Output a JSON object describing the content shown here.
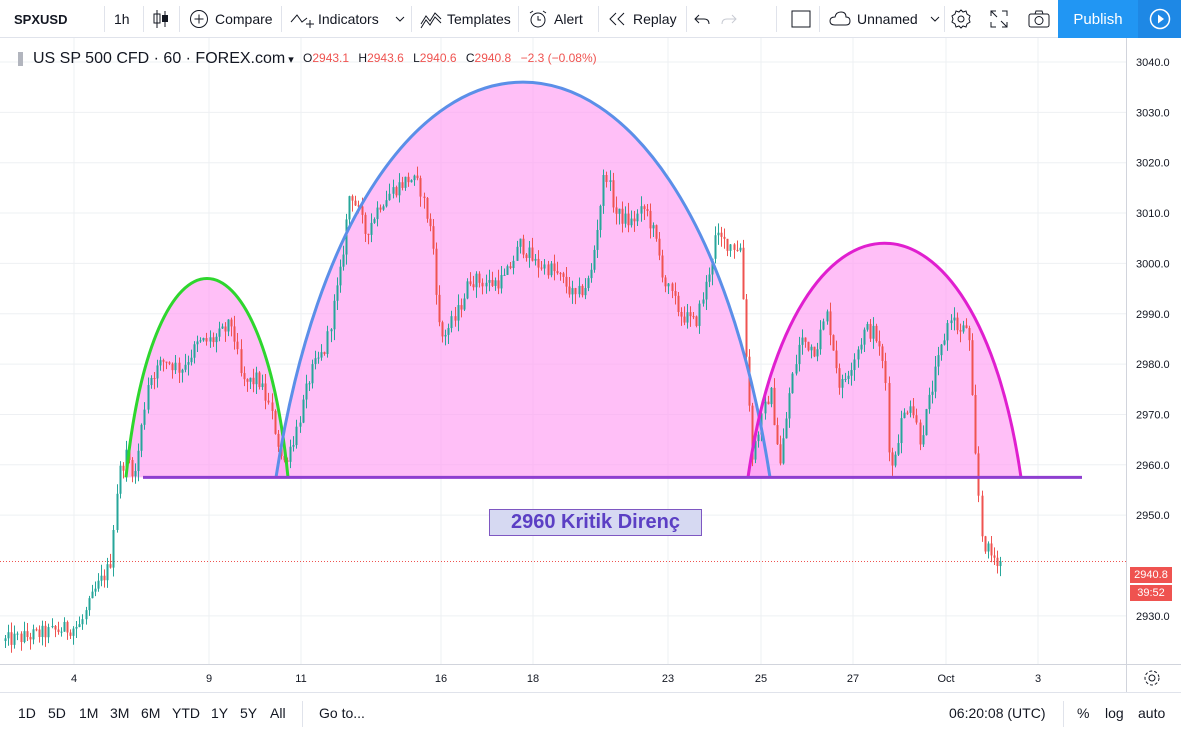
{
  "toolbar": {
    "symbol": "SPXUSD",
    "interval": "1h",
    "compare": "Compare",
    "indicators": "Indicators",
    "templates": "Templates",
    "alert": "Alert",
    "replay": "Replay",
    "layout_name": "Unnamed",
    "publish": "Publish"
  },
  "legend": {
    "title": "US SP 500 CFD · 60 · FOREX.com",
    "open_label": "O",
    "open": "2943.1",
    "high_label": "H",
    "high": "2943.6",
    "low_label": "L",
    "low": "2940.6",
    "close_label": "C",
    "close": "2940.8",
    "change": "−2.3 (−0.08%)"
  },
  "chart_data": {
    "type": "candlestick",
    "y_axis_ticks": [
      "3040.0",
      "3030.0",
      "3020.0",
      "3010.0",
      "3000.0",
      "2990.0",
      "2980.0",
      "2970.0",
      "2960.0",
      "2950.0",
      "2930.0"
    ],
    "y_axis_tick_values": [
      3040,
      3030,
      3020,
      3010,
      3000,
      2990,
      2980,
      2970,
      2960,
      2950,
      2930
    ],
    "ylim": [
      2921,
      3044
    ],
    "x_axis_ticks": [
      "4",
      "9",
      "11",
      "16",
      "18",
      "23",
      "25",
      "27",
      "Oct",
      "3"
    ],
    "last_price": "2940.8",
    "countdown": "39:52",
    "resistance_level": 2957.5,
    "annotation": "2960 Kritik Direnç",
    "colors": {
      "up": "#26a69a",
      "down": "#ef5350",
      "fill": "#ff9cf3",
      "arc_left": "#2ed62e",
      "arc_mid": "#5b8fe8",
      "arc_right": "#e01fcf",
      "line": "#8e3fd0"
    }
  },
  "bottom": {
    "ranges": [
      "1D",
      "5D",
      "1M",
      "3M",
      "6M",
      "YTD",
      "1Y",
      "5Y",
      "All"
    ],
    "goto": "Go to...",
    "time": "06:20:08 (UTC)",
    "percent": "%",
    "log": "log",
    "auto": "auto"
  }
}
